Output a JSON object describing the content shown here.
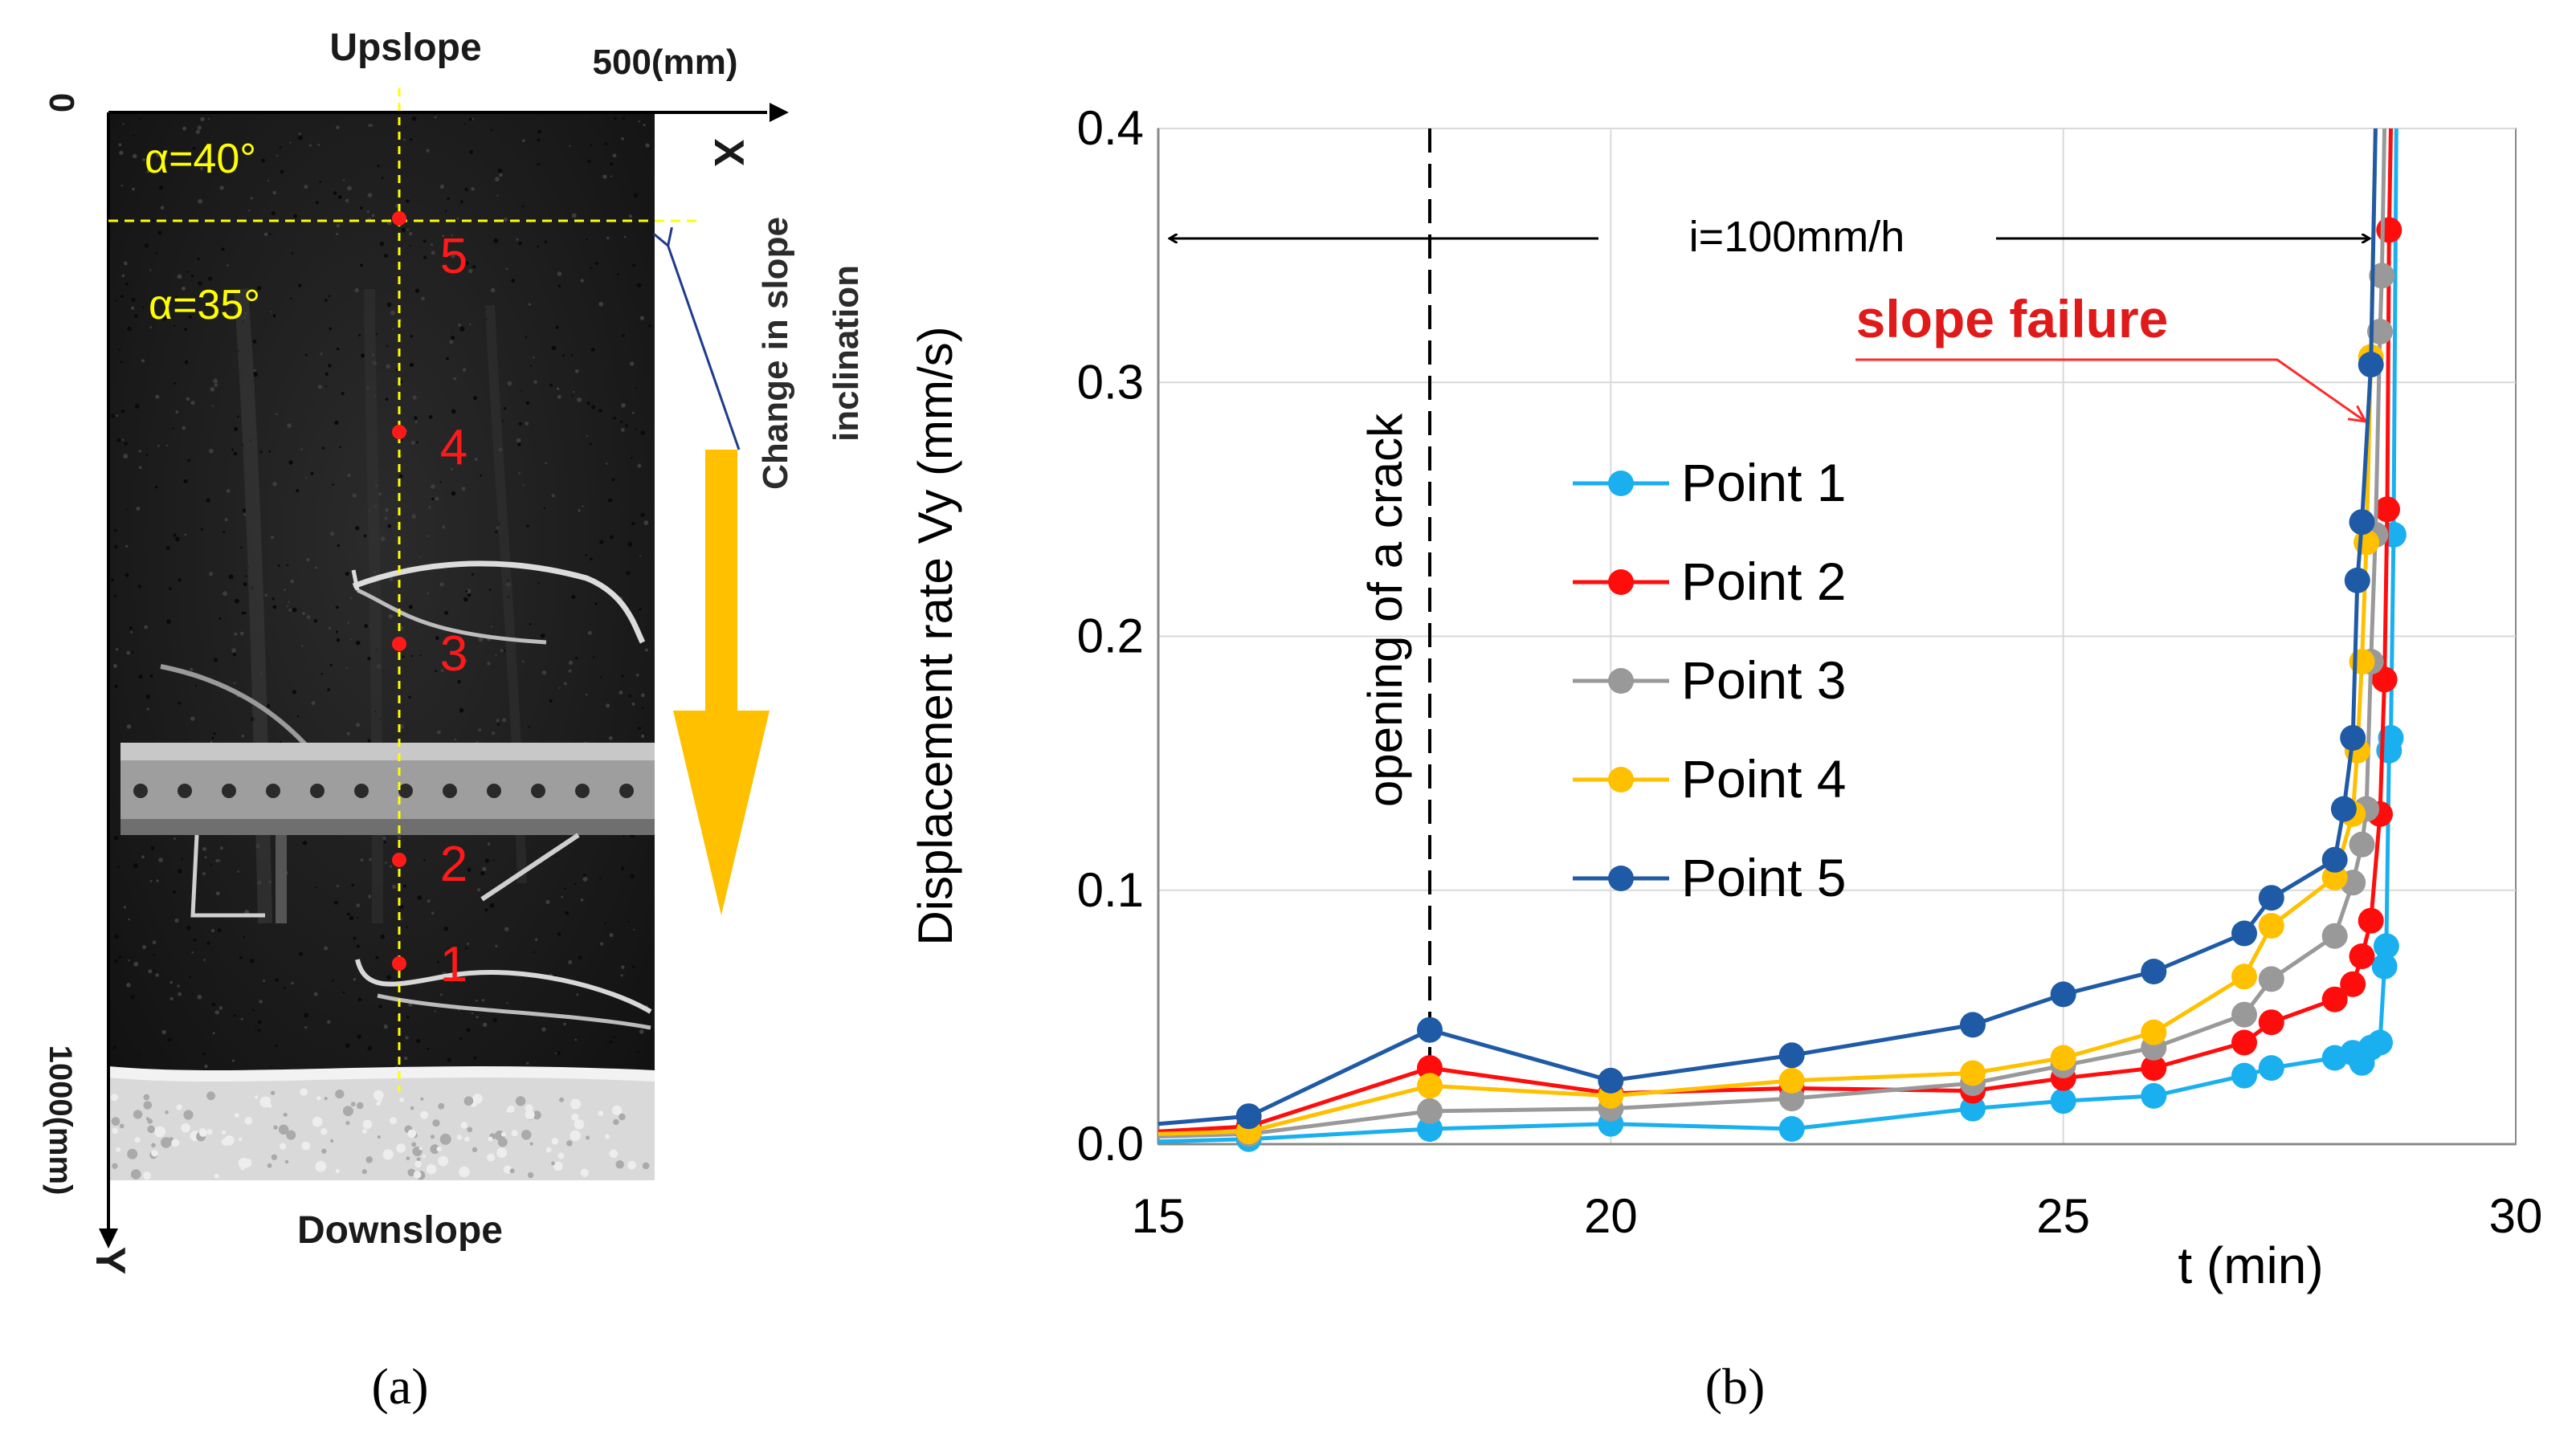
{
  "panel_a": {
    "caption": "(a)",
    "top_label": "Upslope",
    "bottom_label": "Downslope",
    "x_end_label": "500(mm)",
    "x_axis_label": "X",
    "y_axis_label": "Y",
    "origin_label": "0",
    "y_end_label": "1000(mm)",
    "angle_upper": "α=40°",
    "angle_lower": "α=35°",
    "change_note_line1": "Change in slope",
    "change_note_line2": "inclination",
    "points": [
      "1",
      "2",
      "3",
      "4",
      "5"
    ],
    "colors": {
      "guide": "#ffff00",
      "marker": "#ff1a1a",
      "arrow": "#ffc000",
      "pointer": "#1f3b8c"
    }
  },
  "panel_b": {
    "caption": "(b)",
    "rain_label": "i=100mm/h",
    "failure_label": "slope failure",
    "crack_label": "opening of a crack"
  },
  "chart_data": {
    "type": "line",
    "xlabel": "t (min)",
    "ylabel": "Displacement rate Vy (mm/s)",
    "xlim": [
      15,
      30
    ],
    "ylim": [
      0,
      0.4
    ],
    "xticks": [
      "15",
      "20",
      "25",
      "30"
    ],
    "yticks": [
      "0.0",
      "0.1",
      "0.2",
      "0.3",
      "0.4"
    ],
    "grid": true,
    "legend_position": "center-left",
    "series": [
      {
        "name": "Point 1",
        "color": "#1ab0f0",
        "points": [
          [
            15,
            0.001
          ],
          [
            16,
            0.002
          ],
          [
            18,
            0.006
          ],
          [
            20,
            0.008
          ],
          [
            22,
            0.006
          ],
          [
            24,
            0.014
          ],
          [
            25,
            0.017
          ],
          [
            26,
            0.019
          ],
          [
            27,
            0.027
          ],
          [
            27.3,
            0.03
          ],
          [
            28,
            0.034
          ],
          [
            28.2,
            0.036
          ],
          [
            28.3,
            0.032
          ],
          [
            28.4,
            0.038
          ],
          [
            28.5,
            0.04
          ],
          [
            28.55,
            0.07
          ],
          [
            28.57,
            0.078
          ],
          [
            28.6,
            0.155
          ],
          [
            28.62,
            0.16
          ],
          [
            28.65,
            0.24
          ],
          [
            28.68,
            0.42
          ]
        ]
      },
      {
        "name": "Point 2",
        "color": "#ff0d0d",
        "points": [
          [
            15,
            0.005
          ],
          [
            16,
            0.007
          ],
          [
            18,
            0.03
          ],
          [
            20,
            0.02
          ],
          [
            22,
            0.022
          ],
          [
            24,
            0.021
          ],
          [
            25,
            0.026
          ],
          [
            26,
            0.03
          ],
          [
            27,
            0.04
          ],
          [
            27.3,
            0.048
          ],
          [
            28,
            0.057
          ],
          [
            28.2,
            0.063
          ],
          [
            28.3,
            0.074
          ],
          [
            28.4,
            0.088
          ],
          [
            28.5,
            0.13
          ],
          [
            28.55,
            0.183
          ],
          [
            28.58,
            0.25
          ],
          [
            28.6,
            0.36
          ],
          [
            28.62,
            0.42
          ]
        ]
      },
      {
        "name": "Point 3",
        "color": "#999999",
        "points": [
          [
            15,
            0.003
          ],
          [
            16,
            0.004
          ],
          [
            18,
            0.013
          ],
          [
            20,
            0.014
          ],
          [
            22,
            0.018
          ],
          [
            24,
            0.024
          ],
          [
            25,
            0.031
          ],
          [
            26,
            0.038
          ],
          [
            27,
            0.051
          ],
          [
            27.3,
            0.065
          ],
          [
            28,
            0.082
          ],
          [
            28.2,
            0.103
          ],
          [
            28.3,
            0.118
          ],
          [
            28.35,
            0.132
          ],
          [
            28.4,
            0.19
          ],
          [
            28.45,
            0.24
          ],
          [
            28.5,
            0.32
          ],
          [
            28.52,
            0.342
          ],
          [
            28.55,
            0.42
          ]
        ]
      },
      {
        "name": "Point 4",
        "color": "#ffc000",
        "points": [
          [
            15,
            0.004
          ],
          [
            16,
            0.005
          ],
          [
            18,
            0.023
          ],
          [
            20,
            0.019
          ],
          [
            22,
            0.025
          ],
          [
            24,
            0.028
          ],
          [
            25,
            0.034
          ],
          [
            26,
            0.044
          ],
          [
            27,
            0.066
          ],
          [
            27.3,
            0.086
          ],
          [
            28,
            0.105
          ],
          [
            28.2,
            0.13
          ],
          [
            28.25,
            0.155
          ],
          [
            28.3,
            0.19
          ],
          [
            28.35,
            0.237
          ],
          [
            28.4,
            0.31
          ],
          [
            28.45,
            0.42
          ]
        ]
      },
      {
        "name": "Point 5",
        "color": "#1f5aa6",
        "points": [
          [
            15,
            0.008
          ],
          [
            16,
            0.011
          ],
          [
            18,
            0.045
          ],
          [
            20,
            0.025
          ],
          [
            22,
            0.035
          ],
          [
            24,
            0.047
          ],
          [
            25,
            0.059
          ],
          [
            26,
            0.068
          ],
          [
            27,
            0.083
          ],
          [
            27.3,
            0.097
          ],
          [
            28,
            0.112
          ],
          [
            28.1,
            0.132
          ],
          [
            28.2,
            0.16
          ],
          [
            28.25,
            0.222
          ],
          [
            28.3,
            0.245
          ],
          [
            28.4,
            0.307
          ],
          [
            28.45,
            0.42
          ]
        ]
      }
    ]
  }
}
